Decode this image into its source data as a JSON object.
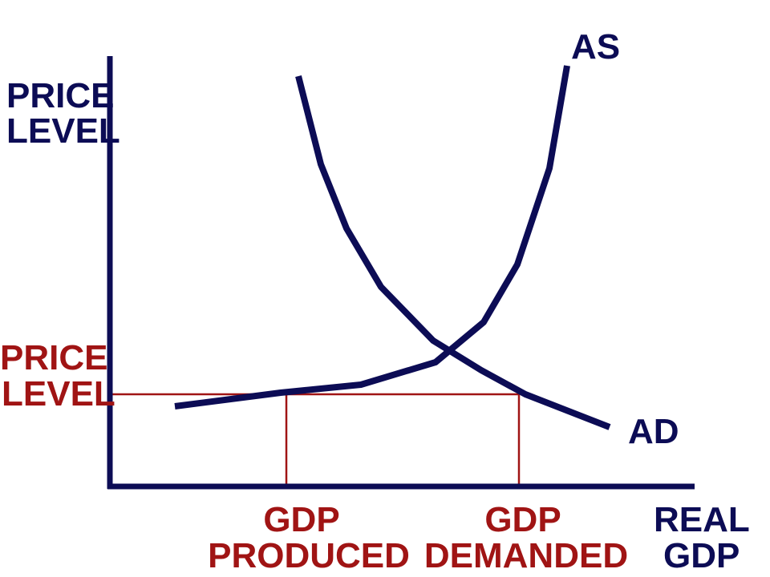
{
  "curves": {
    "supply": "AS",
    "demand": "AD"
  },
  "y_axis_label": [
    "PRICE",
    "LEVEL"
  ],
  "equilibrium_price_label": [
    "PRICE",
    "LEVEL"
  ],
  "x_markers": [
    {
      "lines": [
        "GDP",
        "PRODUCED"
      ]
    },
    {
      "lines": [
        "GDP",
        "DEMANDED"
      ]
    }
  ],
  "x_axis_label": [
    "REAL",
    "GDP"
  ]
}
